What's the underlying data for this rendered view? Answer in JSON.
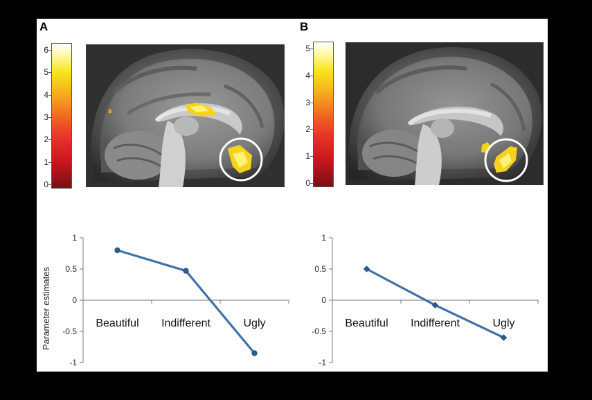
{
  "panels": [
    {
      "letter": "A",
      "colorbar": {
        "ticks": [
          "0",
          "1",
          "2",
          "3",
          "4",
          "5",
          "6"
        ]
      }
    },
    {
      "letter": "B",
      "colorbar": {
        "ticks": [
          "0",
          "1",
          "2",
          "3",
          "4",
          "5"
        ]
      }
    }
  ],
  "colors": {
    "line": "#3e72a8",
    "activation_light": "#fff27a",
    "activation_mid": "#f7d21a",
    "activation_dark": "#f0a516",
    "roi_circle": "#ffffff"
  },
  "chart_data": [
    {
      "type": "line",
      "categories": [
        "Beautiful",
        "Indifferent",
        "Ugly"
      ],
      "series": [
        {
          "values": [
            0.8,
            0.47,
            -0.85
          ],
          "marker": "circle"
        }
      ],
      "title": "",
      "xlabel": "",
      "ylabel": "Parameter estimates",
      "ylim": [
        -1,
        1
      ],
      "yticks": [
        "1",
        "0.5",
        "0",
        "-0.5",
        "-1"
      ],
      "grid": false
    },
    {
      "type": "line",
      "categories": [
        "Beautiful",
        "Indifferent",
        "Ugly"
      ],
      "series": [
        {
          "values": [
            0.5,
            -0.08,
            -0.6
          ],
          "marker": "diamond"
        }
      ],
      "title": "",
      "xlabel": "",
      "ylabel": "",
      "ylim": [
        -1,
        1
      ],
      "yticks": [
        "1",
        "0.5",
        "0",
        "-0.5",
        "-1"
      ],
      "grid": false
    }
  ]
}
